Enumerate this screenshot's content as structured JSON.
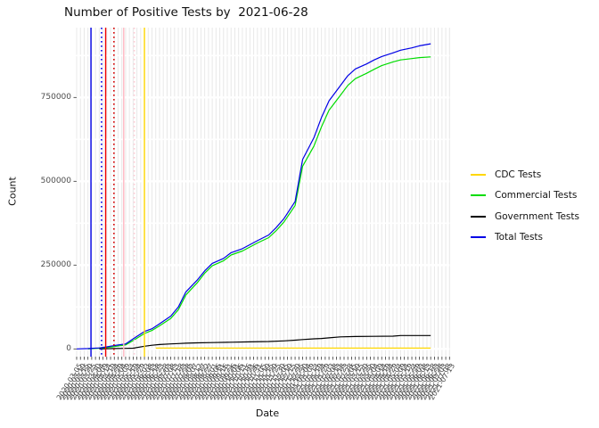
{
  "chart_data": {
    "type": "line",
    "title": "Number of Positive Tests by  2021-06-28",
    "xlabel": "Date",
    "ylabel": "Count",
    "ylim": [
      0,
      958000
    ],
    "grid": "dense vertical gray minor lines, white horizontal major/minor lines",
    "legend_position": "right",
    "y_tick_labels": [
      "0",
      "250000",
      "500000",
      "750000"
    ],
    "y_tick_values": [
      0,
      250000,
      500000,
      750000
    ],
    "y_minor_values": [
      125000,
      375000,
      625000,
      875000
    ],
    "x_dates": [
      "2020-03-05",
      "2020-03-10",
      "2020-03-15",
      "2020-03-20",
      "2020-03-25",
      "2020-03-30",
      "2020-04-04",
      "2020-04-09",
      "2020-04-14",
      "2020-04-19",
      "2020-04-24",
      "2020-04-29",
      "2020-05-04",
      "2020-05-09",
      "2020-05-14",
      "2020-05-19",
      "2020-05-24",
      "2020-05-29",
      "2020-06-03",
      "2020-06-08",
      "2020-06-13",
      "2020-06-18",
      "2020-06-23",
      "2020-06-28",
      "2020-07-03",
      "2020-07-08",
      "2020-07-13",
      "2020-07-18",
      "2020-07-23",
      "2020-07-28",
      "2020-08-02",
      "2020-08-07",
      "2020-08-12",
      "2020-08-17",
      "2020-08-22",
      "2020-08-27",
      "2020-09-01",
      "2020-09-06",
      "2020-09-11",
      "2020-09-16",
      "2020-09-21",
      "2020-09-26",
      "2020-10-01",
      "2020-10-06",
      "2020-10-11",
      "2020-10-16",
      "2020-10-21",
      "2020-10-26",
      "2020-10-31",
      "2020-11-05",
      "2020-11-10",
      "2020-11-15",
      "2020-11-20",
      "2020-11-25",
      "2020-11-30",
      "2020-12-05",
      "2020-12-10",
      "2020-12-15",
      "2020-12-20",
      "2020-12-25",
      "2020-12-30",
      "2021-01-04",
      "2021-01-09",
      "2021-01-14",
      "2021-01-19",
      "2021-01-24",
      "2021-01-29",
      "2021-02-03",
      "2021-02-08",
      "2021-02-13",
      "2021-02-18",
      "2021-02-23",
      "2021-02-28",
      "2021-03-05",
      "2021-03-10",
      "2021-03-15",
      "2021-03-20",
      "2021-03-25",
      "2021-03-30",
      "2021-04-04",
      "2021-04-09",
      "2021-04-14",
      "2021-04-19",
      "2021-04-24",
      "2021-04-29",
      "2021-05-04",
      "2021-05-09",
      "2021-05-14",
      "2021-05-19",
      "2021-05-24",
      "2021-05-29",
      "2021-06-03",
      "2021-06-08",
      "2021-06-13",
      "2021-06-18",
      "2021-06-23",
      "2021-06-28",
      "2021-07-03",
      "2021-07-08",
      "2021-07-13"
    ],
    "series": [
      {
        "name": "CDC Tests",
        "color": "#FFD700",
        "points": [
          [
            21,
            2500
          ],
          [
            94,
            2500
          ]
        ]
      },
      {
        "name": "Commercial Tests",
        "color": "#00DC00",
        "points": [
          [
            3,
            0
          ],
          [
            6,
            2000
          ],
          [
            8,
            4000
          ],
          [
            10,
            7000
          ],
          [
            13,
            12000
          ],
          [
            15,
            25000
          ],
          [
            18,
            46000
          ],
          [
            20,
            55000
          ],
          [
            22,
            69000
          ],
          [
            25,
            91000
          ],
          [
            27,
            117000
          ],
          [
            29,
            161000
          ],
          [
            32,
            197000
          ],
          [
            34,
            226000
          ],
          [
            36,
            248000
          ],
          [
            39,
            263000
          ],
          [
            41,
            280000
          ],
          [
            44,
            292000
          ],
          [
            46,
            304000
          ],
          [
            48,
            316000
          ],
          [
            51,
            332000
          ],
          [
            53,
            353000
          ],
          [
            55,
            378000
          ],
          [
            58,
            428000
          ],
          [
            60,
            545000
          ],
          [
            63,
            605000
          ],
          [
            65,
            662000
          ],
          [
            67,
            712000
          ],
          [
            70,
            756000
          ],
          [
            72,
            786000
          ],
          [
            74,
            806000
          ],
          [
            77,
            822000
          ],
          [
            79,
            834000
          ],
          [
            81,
            845000
          ],
          [
            84,
            856000
          ],
          [
            86,
            862000
          ],
          [
            89,
            866000
          ],
          [
            91,
            869000
          ],
          [
            94,
            871000
          ]
        ]
      },
      {
        "name": "Government Tests",
        "color": "#000000",
        "points": [
          [
            6,
            0
          ],
          [
            10,
            1000
          ],
          [
            13,
            1500
          ],
          [
            15,
            2000
          ],
          [
            18,
            8000
          ],
          [
            20,
            11000
          ],
          [
            22,
            13000
          ],
          [
            25,
            15000
          ],
          [
            27,
            16000
          ],
          [
            29,
            17000
          ],
          [
            32,
            18000
          ],
          [
            36,
            19000
          ],
          [
            41,
            20000
          ],
          [
            46,
            21000
          ],
          [
            51,
            22000
          ],
          [
            55,
            24000
          ],
          [
            58,
            26000
          ],
          [
            60,
            28000
          ],
          [
            63,
            30000
          ],
          [
            65,
            31000
          ],
          [
            67,
            33000
          ],
          [
            70,
            36000
          ],
          [
            74,
            37000
          ],
          [
            79,
            37500
          ],
          [
            84,
            38000
          ],
          [
            86,
            40000
          ],
          [
            94,
            40000
          ]
        ]
      },
      {
        "name": "Total Tests",
        "color": "#0000E6",
        "points": [
          [
            0,
            0
          ],
          [
            3,
            1000
          ],
          [
            6,
            3000
          ],
          [
            8,
            6000
          ],
          [
            10,
            10000
          ],
          [
            13,
            15000
          ],
          [
            15,
            30000
          ],
          [
            18,
            52000
          ],
          [
            20,
            60000
          ],
          [
            22,
            75000
          ],
          [
            25,
            98000
          ],
          [
            27,
            125000
          ],
          [
            29,
            170000
          ],
          [
            32,
            205000
          ],
          [
            34,
            233000
          ],
          [
            36,
            255000
          ],
          [
            39,
            270000
          ],
          [
            41,
            287000
          ],
          [
            44,
            299000
          ],
          [
            46,
            311000
          ],
          [
            48,
            323000
          ],
          [
            51,
            340000
          ],
          [
            53,
            362000
          ],
          [
            55,
            388000
          ],
          [
            58,
            440000
          ],
          [
            60,
            565000
          ],
          [
            63,
            630000
          ],
          [
            65,
            690000
          ],
          [
            67,
            740000
          ],
          [
            70,
            785000
          ],
          [
            72,
            815000
          ],
          [
            74,
            835000
          ],
          [
            77,
            850000
          ],
          [
            79,
            862000
          ],
          [
            81,
            872000
          ],
          [
            84,
            883000
          ],
          [
            86,
            891000
          ],
          [
            89,
            898000
          ],
          [
            91,
            904000
          ],
          [
            94,
            910000
          ]
        ]
      }
    ],
    "ref_lines": [
      {
        "name": "vline-blue-solid",
        "color": "#0000E6",
        "style": "solid",
        "x_index": 3.8
      },
      {
        "name": "vline-blue-dotted",
        "color": "#0000E6",
        "style": "dotted",
        "x_index": 6.6
      },
      {
        "name": "vline-red-solid",
        "color": "#F00000",
        "style": "solid",
        "x_index": 7.7
      },
      {
        "name": "vline-red-dotted",
        "color": "#D40000",
        "style": "dotted",
        "x_index": 9.9
      },
      {
        "name": "vline-pink-solid",
        "color": "#FFB6C1",
        "style": "solid",
        "x_index": 12.5
      },
      {
        "name": "vline-pink-dotted",
        "color": "#FFCCD5",
        "style": "dotted",
        "x_index": 15.3
      },
      {
        "name": "vline-gold-solid",
        "color": "#FFD700",
        "style": "solid",
        "x_index": 18.0
      }
    ]
  }
}
